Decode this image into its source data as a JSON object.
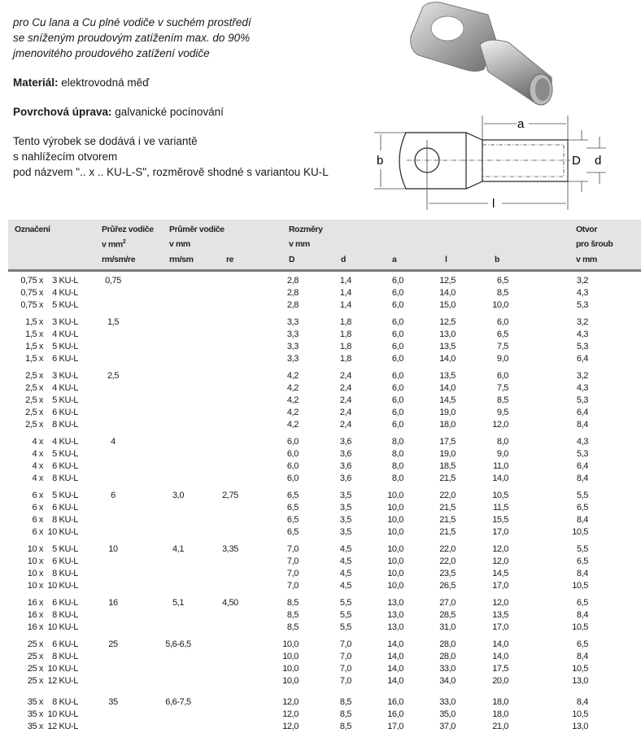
{
  "intro": {
    "lines_italic": [
      "pro Cu lana a Cu plné vodiče v suchém prostředí",
      "se sníženým proudovým zatížením max. do 90%",
      "jmenovitého proudového zatížení vodiče"
    ],
    "material_label": "Materiál:",
    "material_value": " elektrovodná měď",
    "surface_label": "Povrchová úprava:",
    "surface_value": " galvanické pocínování",
    "variant_lines": [
      "Tento výrobek se dodává i ve variantě",
      "s nahlížecím otvorem",
      "pod názvem \".. x .. KU-L-S\", rozměrově shodné s variantou KU-L"
    ]
  },
  "drawing": {
    "labels": {
      "a": "a",
      "b": "b",
      "D": "D",
      "d": "d",
      "l": "l"
    }
  },
  "table": {
    "headers": {
      "oznaceni": "Označení",
      "prurez": "Průřez vodiče",
      "prurez_unit": "v mm",
      "prurez_sup": "2",
      "prurez_sub": "rm/sm/re",
      "prumer": "Průměr vodiče",
      "prumer_unit": "v mm",
      "prumer_sub": "rm/sm",
      "re": "re",
      "rozmery": "Rozměry",
      "rozmery_unit": "v mm",
      "D": "D",
      "d": "d",
      "a": "a",
      "l": "l",
      "b": "b",
      "otvor": "Otvor",
      "otvor_2": "pro šroub",
      "otvor_unit": "v mm"
    },
    "groups": [
      {
        "prurez": "0,75",
        "prumer": "",
        "re": "",
        "rows": [
          [
            "0,75 x",
            "3 KU-L",
            "2,8",
            "1,4",
            "6,0",
            "12,5",
            "6,5",
            "3,2"
          ],
          [
            "0,75 x",
            "4 KU-L",
            "2,8",
            "1,4",
            "6,0",
            "14,0",
            "8,5",
            "4,3"
          ],
          [
            "0,75 x",
            "5 KU-L",
            "2,8",
            "1,4",
            "6,0",
            "15,0",
            "10,0",
            "5,3"
          ]
        ]
      },
      {
        "prurez": "1,5",
        "prumer": "",
        "re": "",
        "rows": [
          [
            "1,5 x",
            "3 KU-L",
            "3,3",
            "1,8",
            "6,0",
            "12,5",
            "6,0",
            "3,2"
          ],
          [
            "1,5 x",
            "4 KU-L",
            "3,3",
            "1,8",
            "6,0",
            "13,0",
            "6,5",
            "4,3"
          ],
          [
            "1,5 x",
            "5 KU-L",
            "3,3",
            "1,8",
            "6,0",
            "13,5",
            "7,5",
            "5,3"
          ],
          [
            "1,5 x",
            "6 KU-L",
            "3,3",
            "1,8",
            "6,0",
            "14,0",
            "9,0",
            "6,4"
          ]
        ]
      },
      {
        "prurez": "2,5",
        "prumer": "",
        "re": "",
        "rows": [
          [
            "2,5 x",
            "3 KU-L",
            "4,2",
            "2,4",
            "6,0",
            "13,5",
            "6,0",
            "3,2"
          ],
          [
            "2,5 x",
            "4 KU-L",
            "4,2",
            "2,4",
            "6,0",
            "14,0",
            "7,5",
            "4,3"
          ],
          [
            "2,5 x",
            "5 KU-L",
            "4,2",
            "2,4",
            "6,0",
            "14,5",
            "8,5",
            "5,3"
          ],
          [
            "2,5 x",
            "6 KU-L",
            "4,2",
            "2,4",
            "6,0",
            "19,0",
            "9,5",
            "6,4"
          ],
          [
            "2,5 x",
            "8 KU-L",
            "4,2",
            "2,4",
            "6,0",
            "18,0",
            "12,0",
            "8,4"
          ]
        ]
      },
      {
        "prurez": "4",
        "prumer": "",
        "re": "",
        "rows": [
          [
            "4 x",
            "4 KU-L",
            "6,0",
            "3,6",
            "8,0",
            "17,5",
            "8,0",
            "4,3"
          ],
          [
            "4 x",
            "5 KU-L",
            "6,0",
            "3,6",
            "8,0",
            "19,0",
            "9,0",
            "5,3"
          ],
          [
            "4 x",
            "6 KU-L",
            "6,0",
            "3,6",
            "8,0",
            "18,5",
            "11,0",
            "6,4"
          ],
          [
            "4 x",
            "8 KU-L",
            "6,0",
            "3,6",
            "8,0",
            "21,5",
            "14,0",
            "8,4"
          ]
        ]
      },
      {
        "prurez": "6",
        "prumer": "3,0",
        "re": "2,75",
        "rows": [
          [
            "6 x",
            "5 KU-L",
            "6,5",
            "3,5",
            "10,0",
            "22,0",
            "10,5",
            "5,5"
          ],
          [
            "6 x",
            "6 KU-L",
            "6,5",
            "3,5",
            "10,0",
            "21,5",
            "11,5",
            "6,5"
          ],
          [
            "6 x",
            "8 KU-L",
            "6,5",
            "3,5",
            "10,0",
            "21,5",
            "15,5",
            "8,4"
          ],
          [
            "6 x",
            "10 KU-L",
            "6,5",
            "3,5",
            "10,0",
            "21,5",
            "17,0",
            "10,5"
          ]
        ]
      },
      {
        "prurez": "10",
        "prumer": "4,1",
        "re": "3,35",
        "rows": [
          [
            "10 x",
            "5 KU-L",
            "7,0",
            "4,5",
            "10,0",
            "22,0",
            "12,0",
            "5,5"
          ],
          [
            "10 x",
            "6 KU-L",
            "7,0",
            "4,5",
            "10,0",
            "22,0",
            "12,0",
            "6,5"
          ],
          [
            "10 x",
            "8 KU-L",
            "7,0",
            "4,5",
            "10,0",
            "23,5",
            "14,5",
            "8,4"
          ],
          [
            "10 x",
            "10 KU-L",
            "7,0",
            "4,5",
            "10,0",
            "26,5",
            "17,0",
            "10,5"
          ]
        ]
      },
      {
        "prurez": "16",
        "prumer": "5,1",
        "re": "4,50",
        "rows": [
          [
            "16 x",
            "6 KU-L",
            "8,5",
            "5,5",
            "13,0",
            "27,0",
            "12,0",
            "6,5"
          ],
          [
            "16 x",
            "8 KU-L",
            "8,5",
            "5,5",
            "13,0",
            "28,5",
            "13,5",
            "8,4"
          ],
          [
            "16 x",
            "10 KU-L",
            "8,5",
            "5,5",
            "13,0",
            "31,0",
            "17,0",
            "10,5"
          ]
        ]
      },
      {
        "prurez": "25",
        "prumer": "5,6-6,5",
        "re": "",
        "rows": [
          [
            "25 x",
            "6 KU-L",
            "10,0",
            "7,0",
            "14,0",
            "28,0",
            "14,0",
            "6,5"
          ],
          [
            "25 x",
            "8 KU-L",
            "10,0",
            "7,0",
            "14,0",
            "28,0",
            "14,0",
            "8,4"
          ],
          [
            "25 x",
            "10 KU-L",
            "10,0",
            "7,0",
            "14,0",
            "33,0",
            "17,5",
            "10,5"
          ],
          [
            "25 x",
            "12 KU-L",
            "10,0",
            "7,0",
            "14,0",
            "34,0",
            "20,0",
            "13,0"
          ]
        ]
      },
      {
        "prurez": "35",
        "prumer": "6,6-7,5",
        "re": "",
        "rows": [
          [
            "35 x",
            "8 KU-L",
            "12,0",
            "8,5",
            "16,0",
            "33,0",
            "18,0",
            "8,4"
          ],
          [
            "35 x",
            "10 KU-L",
            "12,0",
            "8,5",
            "16,0",
            "35,0",
            "18,0",
            "10,5"
          ],
          [
            "35 x",
            "12 KU-L",
            "12,0",
            "8,5",
            "17,0",
            "37,0",
            "21,0",
            "13,0"
          ]
        ]
      }
    ]
  }
}
